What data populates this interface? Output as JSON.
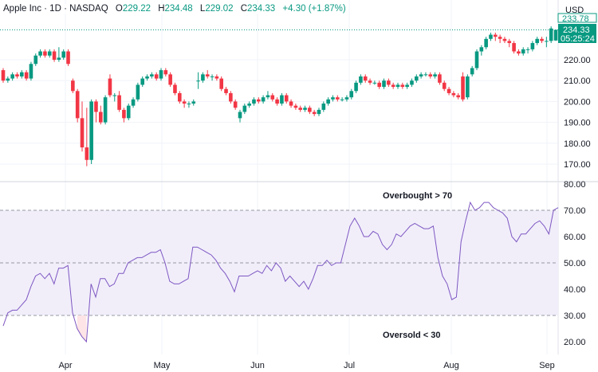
{
  "header": {
    "symbol_line": "Apple Inc · 1D · NASDAQ",
    "open_label": "O",
    "open": "229.22",
    "high_label": "H",
    "high": "234.48",
    "low_label": "L",
    "low": "229.02",
    "close_label": "C",
    "close": "234.33",
    "change": "+4.30 (+1.87%)"
  },
  "currency": "USD",
  "last_price_tag": {
    "price": "234.33",
    "countdown": "05:25:24",
    "hidden_price": "233.78"
  },
  "colors": {
    "up": "#089981",
    "down": "#f23645",
    "rsi_line": "#7e57c2",
    "rsi_band": "#f1eefa",
    "oversold_fill": "#fde4e6"
  },
  "chart_data": [
    {
      "type": "candlestick",
      "title": "",
      "ylim": [
        165,
        240
      ],
      "y_ticks": [
        "220.00",
        "210.00",
        "200.00",
        "190.00",
        "180.00",
        "170.00"
      ],
      "x_ticks": [
        "Apr",
        "May",
        "Jun",
        "Jul",
        "Aug",
        "Sep"
      ],
      "grid": true,
      "ohlc": [
        [
          215,
          216,
          209,
          210
        ],
        [
          210,
          212,
          209,
          211
        ],
        [
          211,
          214,
          210,
          213
        ],
        [
          213,
          214,
          211,
          212
        ],
        [
          212,
          215,
          211,
          214
        ],
        [
          214,
          215,
          210,
          211
        ],
        [
          211,
          219,
          210,
          218
        ],
        [
          218,
          223,
          217,
          222
        ],
        [
          222,
          225,
          221,
          224
        ],
        [
          224,
          225,
          221,
          222
        ],
        [
          222,
          225,
          221,
          224
        ],
        [
          224,
          225,
          219,
          220
        ],
        [
          220,
          226,
          219,
          221
        ],
        [
          221,
          225,
          220,
          224
        ],
        [
          224,
          225,
          217,
          218
        ],
        [
          210,
          211,
          204,
          205
        ],
        [
          205,
          206,
          190,
          192
        ],
        [
          192,
          200,
          176,
          178
        ],
        [
          178,
          197,
          169,
          172
        ],
        [
          172,
          201,
          170,
          200
        ],
        [
          200,
          201,
          190,
          195
        ],
        [
          195,
          198,
          189,
          190
        ],
        [
          190,
          203,
          189,
          202
        ],
        [
          211,
          213,
          202,
          203
        ],
        [
          203,
          204,
          200,
          203
        ],
        [
          203,
          205,
          195,
          196
        ],
        [
          196,
          197,
          190,
          192
        ],
        [
          192,
          199,
          191,
          198
        ],
        [
          198,
          202,
          197,
          201
        ],
        [
          201,
          209,
          200,
          208
        ],
        [
          208,
          212,
          207,
          211
        ],
        [
          211,
          213,
          210,
          212
        ],
        [
          212,
          214,
          211,
          213
        ],
        [
          213,
          214,
          210,
          211
        ],
        [
          211,
          216,
          210,
          215
        ],
        [
          215,
          216,
          212,
          213
        ],
        [
          213,
          214,
          207,
          208
        ],
        [
          208,
          209,
          203,
          204
        ],
        [
          204,
          205,
          199,
          200
        ],
        [
          200,
          201,
          197,
          199
        ],
        [
          199,
          200,
          197,
          199
        ],
        [
          199,
          201,
          198,
          200
        ],
        [
          210,
          214,
          206,
          210
        ],
        [
          210,
          214,
          209,
          213
        ],
        [
          213,
          215,
          211,
          212
        ],
        [
          212,
          213,
          210,
          212
        ],
        [
          212,
          213,
          210,
          211
        ],
        [
          211,
          212,
          205,
          206
        ],
        [
          206,
          207,
          203,
          204
        ],
        [
          204,
          205,
          199,
          200
        ],
        [
          200,
          201,
          196,
          197
        ],
        [
          192,
          196,
          190,
          195
        ],
        [
          195,
          199,
          194,
          198
        ],
        [
          198,
          200,
          197,
          199
        ],
        [
          199,
          202,
          198,
          201
        ],
        [
          201,
          202,
          199,
          200
        ],
        [
          200,
          203,
          199,
          202
        ],
        [
          202,
          205,
          201,
          203
        ],
        [
          203,
          204,
          200,
          201
        ],
        [
          201,
          202,
          198,
          199
        ],
        [
          199,
          204,
          198,
          203
        ],
        [
          203,
          204,
          199,
          200
        ],
        [
          200,
          201,
          197,
          198
        ],
        [
          198,
          199,
          196,
          197
        ],
        [
          197,
          198,
          195,
          196
        ],
        [
          196,
          198,
          195,
          197
        ],
        [
          197,
          198,
          194,
          195
        ],
        [
          195,
          196,
          193,
          194
        ],
        [
          194,
          197,
          193,
          196
        ],
        [
          196,
          200,
          195,
          199
        ],
        [
          199,
          202,
          198,
          201
        ],
        [
          201,
          203,
          200,
          202
        ],
        [
          202,
          203,
          200,
          201
        ],
        [
          201,
          202,
          200,
          201
        ],
        [
          201,
          203,
          200,
          202
        ],
        [
          202,
          206,
          201,
          205
        ],
        [
          205,
          210,
          204,
          209
        ],
        [
          209,
          213,
          208,
          212
        ],
        [
          212,
          213,
          209,
          210
        ],
        [
          210,
          211,
          208,
          209
        ],
        [
          209,
          210,
          208,
          209
        ],
        [
          209,
          210,
          206,
          207
        ],
        [
          207,
          211,
          206,
          210
        ],
        [
          210,
          211,
          207,
          208
        ],
        [
          208,
          209,
          206,
          207
        ],
        [
          207,
          209,
          206,
          208
        ],
        [
          208,
          209,
          206,
          207
        ],
        [
          207,
          209,
          206,
          208
        ],
        [
          208,
          211,
          207,
          210
        ],
        [
          210,
          213,
          209,
          212
        ],
        [
          212,
          214,
          211,
          213
        ],
        [
          213,
          214,
          212,
          213
        ],
        [
          213,
          214,
          211,
          212
        ],
        [
          212,
          214,
          211,
          213
        ],
        [
          213,
          214,
          208,
          209
        ],
        [
          209,
          210,
          205,
          206
        ],
        [
          206,
          207,
          203,
          204
        ],
        [
          204,
          205,
          202,
          203
        ],
        [
          203,
          204,
          201,
          202
        ],
        [
          212,
          214,
          200,
          201
        ],
        [
          202,
          213,
          201,
          212
        ],
        [
          213,
          217,
          212,
          216
        ],
        [
          216,
          225,
          215,
          224
        ],
        [
          224,
          227,
          222,
          226
        ],
        [
          226,
          231,
          225,
          230
        ],
        [
          230,
          233,
          229,
          232
        ],
        [
          232,
          233,
          229,
          231
        ],
        [
          231,
          232,
          228,
          230
        ],
        [
          230,
          231,
          228,
          229
        ],
        [
          229,
          230,
          226,
          228
        ],
        [
          228,
          229,
          223,
          224
        ],
        [
          224,
          225,
          222,
          223
        ],
        [
          223,
          226,
          222,
          225
        ],
        [
          225,
          226,
          223,
          225
        ],
        [
          225,
          229,
          224,
          228
        ],
        [
          228,
          231,
          227,
          230
        ],
        [
          230,
          231,
          228,
          229
        ],
        [
          229,
          231,
          226,
          229
        ],
        [
          229,
          236,
          228,
          235
        ],
        [
          229.22,
          234.48,
          229.02,
          234.33
        ]
      ]
    },
    {
      "type": "line",
      "title": "",
      "ylim": [
        15,
        82
      ],
      "y_ticks": [
        "80.00",
        "70.00",
        "60.00",
        "50.00",
        "40.00",
        "30.00",
        "20.00"
      ],
      "x_ticks": [
        "Apr",
        "May",
        "Jun",
        "Jul",
        "Aug",
        "Sep"
      ],
      "overbought_level": 70,
      "oversold_level": 30,
      "midline": 50,
      "annotations": [
        "Overbought > 70",
        "Oversold < 30"
      ],
      "values": [
        26,
        31,
        32,
        32,
        34,
        36,
        41,
        45,
        46,
        44,
        46,
        42,
        48,
        48,
        49,
        31,
        25,
        22,
        20,
        42,
        37,
        44,
        44,
        41,
        42,
        46,
        46,
        50,
        51,
        52,
        52,
        53,
        54,
        54,
        55,
        50,
        43,
        42,
        42,
        43,
        44,
        56,
        56,
        55,
        54,
        53,
        51,
        48,
        46,
        43,
        39,
        45,
        45,
        45,
        46,
        47,
        46,
        49,
        47,
        50,
        48,
        43,
        45,
        43,
        41,
        43,
        40,
        44,
        49,
        49,
        51,
        49,
        50,
        50,
        57,
        64,
        67,
        64,
        60,
        60,
        62,
        61,
        57,
        55,
        57,
        61,
        60,
        62,
        64,
        65,
        64,
        63,
        63,
        64,
        52,
        45,
        42,
        36,
        37,
        58,
        66,
        73,
        70,
        71,
        73,
        73,
        71,
        70,
        69,
        67,
        60,
        58,
        61,
        61,
        63,
        65,
        66,
        64,
        61,
        70,
        71
      ]
    }
  ]
}
